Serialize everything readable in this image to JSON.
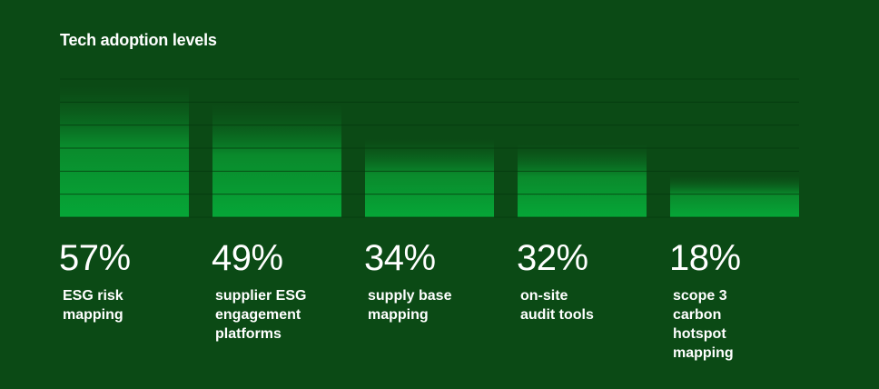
{
  "chart_data": {
    "type": "bar",
    "title": "Tech adoption levels",
    "categories": [
      "ESG risk mapping",
      "supplier ESG engagement platforms",
      "supply base mapping",
      "on-site audit tools",
      "scope 3 carbon hotspot mapping"
    ],
    "values": [
      57,
      49,
      34,
      32,
      18
    ],
    "value_labels": [
      "57%",
      "49%",
      "34%",
      "32%",
      "18%"
    ],
    "color": "#06a637",
    "ylim": [
      0,
      60
    ],
    "yticks": [
      0,
      10,
      20,
      30,
      40,
      50,
      60
    ],
    "grid": true
  }
}
